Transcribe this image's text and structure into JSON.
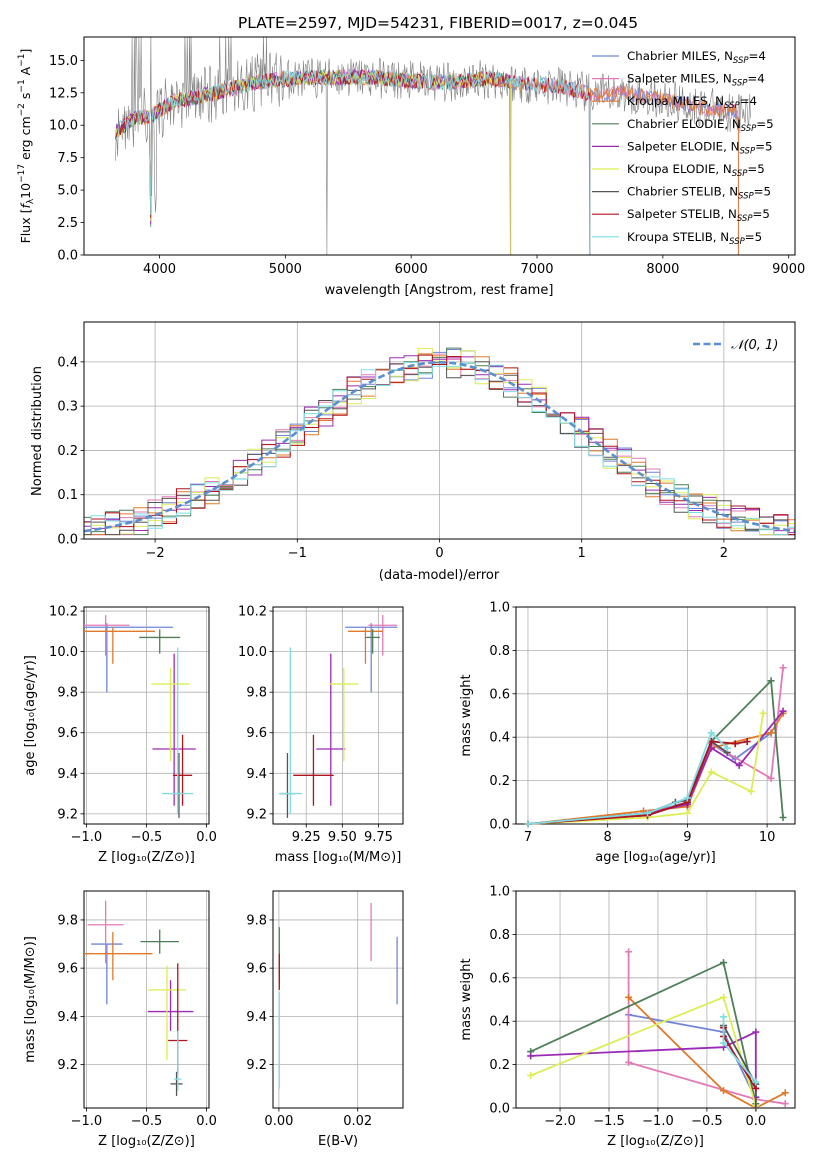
{
  "colors": {
    "Chabrier MILES": "#6f86d6",
    "Salpeter MILES": "#e37ab7",
    "Kroupa MILES": "#e07a2a",
    "Chabrier ELODIE": "#4e7f57",
    "Salpeter ELODIE": "#9b2bb5",
    "Kroupa ELODIE": "#dced56",
    "Chabrier STELIB": "#555555",
    "Salpeter STELIB": "#b1121f",
    "Kroupa STELIB": "#7fdde2",
    "normal": "#5b8fd0"
  },
  "chart_data": [
    {
      "id": "spectrum",
      "type": "line",
      "title": "PLATE=2597, MJD=54231, FIBERID=0017, z=0.045",
      "xlabel": "wavelength [Angstrom, rest frame]",
      "ylabel": "Flux [fλ10⁻¹⁷ erg cm⁻² s⁻¹ A⁻¹]",
      "xlim": [
        3400,
        9050
      ],
      "ylim": [
        0,
        16.8
      ],
      "xticks": [
        4000,
        5000,
        6000,
        7000,
        8000,
        9000
      ],
      "yticks": [
        0.0,
        2.5,
        5.0,
        7.5,
        10.0,
        12.5,
        15.0
      ],
      "legend": [
        {
          "name": "Chabrier MILES",
          "n": "4"
        },
        {
          "name": "Salpeter MILES",
          "n": "4"
        },
        {
          "name": "Kroupa MILES",
          "n": "4"
        },
        {
          "name": "Chabrier ELODIE",
          "n": "5"
        },
        {
          "name": "Salpeter ELODIE",
          "n": "5"
        },
        {
          "name": "Kroupa ELODIE",
          "n": "5"
        },
        {
          "name": "Chabrier STELIB",
          "n": "5"
        },
        {
          "name": "Salpeter STELIB",
          "n": "5"
        },
        {
          "name": "Kroupa STELIB",
          "n": "5"
        }
      ],
      "legend_position": "right",
      "continuum": [
        [
          3650,
          9.5
        ],
        [
          3800,
          10.5
        ],
        [
          3950,
          10.8
        ],
        [
          4100,
          11.8
        ],
        [
          4300,
          12.2
        ],
        [
          4500,
          12.6
        ],
        [
          4700,
          13.2
        ],
        [
          4900,
          13.5
        ],
        [
          5100,
          13.6
        ],
        [
          5400,
          13.7
        ],
        [
          5700,
          13.7
        ],
        [
          6000,
          13.4
        ],
        [
          6300,
          13.3
        ],
        [
          6600,
          13.6
        ],
        [
          6900,
          13.2
        ],
        [
          7200,
          13.0
        ],
        [
          7450,
          12.3
        ],
        [
          7700,
          12.5
        ],
        [
          8000,
          12.0
        ],
        [
          8300,
          11.4
        ],
        [
          8600,
          11.0
        ],
        [
          8700,
          10.8
        ]
      ]
    },
    {
      "id": "residual-histogram",
      "type": "line",
      "xlabel": "(data-model)/error",
      "ylabel": "Normed distribution",
      "xlim": [
        -2.5,
        2.5
      ],
      "ylim": [
        0,
        0.49
      ],
      "xticks": [
        -2,
        -1,
        0,
        1,
        2
      ],
      "yticks": [
        0.0,
        0.1,
        0.2,
        0.3,
        0.4
      ],
      "legend": "𝒩(0, 1)",
      "bin_width": 0.1
    },
    {
      "id": "age-vs-Z",
      "type": "scatter",
      "xlabel": "Z [log₁₀(Z/Z⊙)]",
      "ylabel": "age  [log₁₀(age/yr)]",
      "xlim": [
        -1.02,
        0.02
      ],
      "ylim": [
        9.15,
        10.22
      ],
      "xticks": [
        -1.0,
        -0.5,
        0.0
      ],
      "xticklabels": [
        "−1.0",
        "−0.5",
        "0.0"
      ],
      "yticks": [
        9.2,
        9.4,
        9.6,
        9.8,
        10.0,
        10.2
      ],
      "points": [
        {
          "model": "Chabrier MILES",
          "x": -0.83,
          "y": 10.12,
          "xerr": 0.55,
          "yerr_lo": 0.32,
          "yerr_hi": 0.02
        },
        {
          "model": "Salpeter MILES",
          "x": -0.84,
          "y": 10.13,
          "xerr": 0.2,
          "yerr_lo": 0.15,
          "yerr_hi": 0.05
        },
        {
          "model": "Kroupa MILES",
          "x": -0.78,
          "y": 10.1,
          "xerr": 0.35,
          "yerr_lo": 0.16,
          "yerr_hi": 0.02
        },
        {
          "model": "Chabrier ELODIE",
          "x": -0.39,
          "y": 10.07,
          "xerr": 0.17,
          "yerr_lo": 0.08,
          "yerr_hi": 0.04
        },
        {
          "model": "Salpeter ELODIE",
          "x": -0.27,
          "y": 9.52,
          "xerr": 0.18,
          "yerr_lo": 0.28,
          "yerr_hi": 0.47
        },
        {
          "model": "Kroupa ELODIE",
          "x": -0.3,
          "y": 9.84,
          "xerr": 0.16,
          "yerr_lo": 0.38,
          "yerr_hi": 0.08
        },
        {
          "model": "Chabrier STELIB",
          "x": -0.23,
          "y": 9.3,
          "xerr": 0.05,
          "yerr_lo": 0.12,
          "yerr_hi": 0.2
        },
        {
          "model": "Salpeter STELIB",
          "x": -0.2,
          "y": 9.39,
          "xerr": 0.08,
          "yerr_lo": 0.15,
          "yerr_hi": 0.2
        },
        {
          "model": "Kroupa STELIB",
          "x": -0.24,
          "y": 9.3,
          "xerr": 0.13,
          "yerr_lo": 0.1,
          "yerr_hi": 0.72
        }
      ]
    },
    {
      "id": "age-vs-mass",
      "type": "scatter",
      "xlabel": "mass [log₁₀(M/M⊙)]",
      "ylabel": "",
      "xlim": [
        9.02,
        9.92
      ],
      "ylim": [
        9.15,
        10.22
      ],
      "xticks": [
        9.25,
        9.5,
        9.75
      ],
      "xticklabels": [
        "9.25",
        "9.50",
        "9.75"
      ],
      "yticks": [
        9.2,
        9.4,
        9.6,
        9.8,
        10.0,
        10.2
      ],
      "points": [
        {
          "model": "Chabrier MILES",
          "x": 9.7,
          "y": 10.12,
          "xerr": 0.18,
          "yerr_lo": 0.32,
          "yerr_hi": 0.02
        },
        {
          "model": "Salpeter MILES",
          "x": 9.78,
          "y": 10.13,
          "xerr": 0.1,
          "yerr_lo": 0.15,
          "yerr_hi": 0.05
        },
        {
          "model": "Kroupa MILES",
          "x": 9.66,
          "y": 10.1,
          "xerr": 0.12,
          "yerr_lo": 0.16,
          "yerr_hi": 0.02
        },
        {
          "model": "Chabrier ELODIE",
          "x": 9.71,
          "y": 10.07,
          "xerr": 0.05,
          "yerr_lo": 0.08,
          "yerr_hi": 0.04
        },
        {
          "model": "Salpeter ELODIE",
          "x": 9.42,
          "y": 9.52,
          "xerr": 0.1,
          "yerr_lo": 0.28,
          "yerr_hi": 0.47
        },
        {
          "model": "Kroupa ELODIE",
          "x": 9.51,
          "y": 9.84,
          "xerr": 0.1,
          "yerr_lo": 0.38,
          "yerr_hi": 0.08
        },
        {
          "model": "Chabrier STELIB",
          "x": 9.12,
          "y": 9.3,
          "xerr": 0.05,
          "yerr_lo": 0.12,
          "yerr_hi": 0.2
        },
        {
          "model": "Salpeter STELIB",
          "x": 9.3,
          "y": 9.39,
          "xerr": 0.14,
          "yerr_lo": 0.15,
          "yerr_hi": 0.2
        },
        {
          "model": "Kroupa STELIB",
          "x": 9.14,
          "y": 9.3,
          "xerr": 0.08,
          "yerr_lo": 0.1,
          "yerr_hi": 0.72
        }
      ]
    },
    {
      "id": "mass-weight-vs-age",
      "type": "line",
      "xlabel": "age  [log₁₀(age/yr)]",
      "ylabel": "mass weight",
      "xlim": [
        6.85,
        10.35
      ],
      "ylim": [
        0,
        1.0
      ],
      "xticks": [
        7,
        8,
        9,
        10
      ],
      "yticks": [
        0.0,
        0.2,
        0.4,
        0.6,
        0.8,
        1.0
      ],
      "series": [
        {
          "model": "Chabrier MILES",
          "x": [
            7.0,
            8.5,
            9.0,
            9.3,
            9.6,
            10.05
          ],
          "y": [
            0.0,
            0.05,
            0.1,
            0.37,
            0.3,
            0.42
          ]
        },
        {
          "model": "Salpeter MILES",
          "x": [
            7.0,
            8.5,
            9.0,
            9.3,
            10.05,
            10.2
          ],
          "y": [
            0.0,
            0.05,
            0.09,
            0.37,
            0.21,
            0.72
          ]
        },
        {
          "model": "Kroupa MILES",
          "x": [
            7.0,
            8.45,
            9.0,
            9.3,
            10.05,
            10.2
          ],
          "y": [
            0.0,
            0.06,
            0.08,
            0.35,
            0.42,
            0.51
          ]
        },
        {
          "model": "Chabrier ELODIE",
          "x": [
            7.0,
            8.5,
            9.0,
            9.3,
            10.05,
            10.2
          ],
          "y": [
            0.0,
            0.04,
            0.1,
            0.38,
            0.66,
            0.03
          ]
        },
        {
          "model": "Salpeter ELODIE",
          "x": [
            7.0,
            8.5,
            9.0,
            9.3,
            9.65,
            10.2
          ],
          "y": [
            0.0,
            0.05,
            0.09,
            0.35,
            0.27,
            0.52
          ]
        },
        {
          "model": "Kroupa ELODIE",
          "x": [
            7.0,
            8.5,
            9.0,
            9.3,
            9.8,
            9.95
          ],
          "y": [
            0.0,
            0.03,
            0.05,
            0.24,
            0.15,
            0.51
          ]
        },
        {
          "model": "Chabrier STELIB",
          "x": [
            7.0,
            8.5,
            8.85,
            9.0,
            9.3,
            9.5
          ],
          "y": [
            0.0,
            0.05,
            0.1,
            0.11,
            0.38,
            0.33
          ]
        },
        {
          "model": "Salpeter STELIB",
          "x": [
            7.0,
            8.5,
            9.0,
            9.3,
            9.6,
            9.75
          ],
          "y": [
            0.0,
            0.04,
            0.1,
            0.38,
            0.37,
            0.38
          ]
        },
        {
          "model": "Kroupa STELIB",
          "x": [
            7.0,
            8.5,
            9.0,
            9.3,
            9.5
          ],
          "y": [
            0.0,
            0.05,
            0.12,
            0.42,
            0.35
          ]
        }
      ]
    },
    {
      "id": "mass-vs-Z",
      "type": "scatter",
      "xlabel": "Z [log₁₀(Z/Z⊙)]",
      "ylabel": "mass [log₁₀(M/M⊙)]",
      "xlim": [
        -1.02,
        0.02
      ],
      "ylim": [
        9.02,
        9.92
      ],
      "xticks": [
        -1.0,
        -0.5,
        0.0
      ],
      "xticklabels": [
        "−1.0",
        "−0.5",
        "0.0"
      ],
      "yticks": [
        9.2,
        9.4,
        9.6,
        9.8
      ],
      "points": [
        {
          "model": "Chabrier MILES",
          "x": -0.83,
          "y": 9.7,
          "xerr": 0.13,
          "yerr_lo": 0.25,
          "yerr_hi": 0.0
        },
        {
          "model": "Salpeter MILES",
          "x": -0.84,
          "y": 9.78,
          "xerr": 0.15,
          "yerr_lo": 0.16,
          "yerr_hi": 0.1
        },
        {
          "model": "Kroupa MILES",
          "x": -0.78,
          "y": 9.66,
          "xerr": 0.33,
          "yerr_lo": 0.11,
          "yerr_hi": 0.09
        },
        {
          "model": "Chabrier ELODIE",
          "x": -0.39,
          "y": 9.71,
          "xerr": 0.16,
          "yerr_lo": 0.05,
          "yerr_hi": 0.05
        },
        {
          "model": "Salpeter ELODIE",
          "x": -0.3,
          "y": 9.42,
          "xerr": 0.19,
          "yerr_lo": 0.08,
          "yerr_hi": 0.13
        },
        {
          "model": "Kroupa ELODIE",
          "x": -0.33,
          "y": 9.51,
          "xerr": 0.16,
          "yerr_lo": 0.29,
          "yerr_hi": 0.1
        },
        {
          "model": "Chabrier STELIB",
          "x": -0.25,
          "y": 9.12,
          "xerr": 0.05,
          "yerr_lo": 0.05,
          "yerr_hi": 0.05
        },
        {
          "model": "Salpeter STELIB",
          "x": -0.24,
          "y": 9.3,
          "xerr": 0.08,
          "yerr_lo": 0.14,
          "yerr_hi": 0.32
        },
        {
          "model": "Kroupa STELIB",
          "x": -0.24,
          "y": 9.14,
          "xerr": 0.03,
          "yerr_lo": 0.05,
          "yerr_hi": 0.2
        }
      ]
    },
    {
      "id": "mass-vs-ebv",
      "type": "scatter",
      "xlabel": "E(B-V)",
      "ylabel": "",
      "xlim": [
        -0.0015,
        0.0315
      ],
      "ylim": [
        9.02,
        9.92
      ],
      "xticks": [
        0.0,
        0.02
      ],
      "xticklabels": [
        "0.00",
        "0.02"
      ],
      "yticks": [
        9.2,
        9.4,
        9.6,
        9.8
      ],
      "points": [
        {
          "model": "Chabrier MILES",
          "x": 0.03,
          "y": 9.59,
          "xerr": 0,
          "yerr_lo": 0.14,
          "yerr_hi": 0.14
        },
        {
          "model": "Salpeter MILES",
          "x": 0.0234,
          "y": 9.75,
          "xerr": 0,
          "yerr_lo": 0.12,
          "yerr_hi": 0.12
        },
        {
          "model": "Chabrier ELODIE",
          "x": 0.0001,
          "y": 9.64,
          "xerr": 0,
          "yerr_lo": 0.1,
          "yerr_hi": 0.13
        },
        {
          "model": "Salpeter STELIB",
          "x": 0.0001,
          "y": 9.58,
          "xerr": 0,
          "yerr_lo": 0.07,
          "yerr_hi": 0.08
        },
        {
          "model": "Kroupa STELIB",
          "x": 0.0001,
          "y": 9.3,
          "xerr": 0,
          "yerr_lo": 0.2,
          "yerr_hi": 0.2
        }
      ]
    },
    {
      "id": "mass-weight-vs-Z",
      "type": "line",
      "xlabel": "Z [log₁₀(Z/Z⊙)]",
      "ylabel": "mass weight",
      "xlim": [
        -2.45,
        0.4
      ],
      "ylim": [
        0,
        1.0
      ],
      "xticks": [
        -2.0,
        -1.5,
        -1.0,
        -0.5,
        0.0
      ],
      "xticklabels": [
        "−2.0",
        "−1.5",
        "−1.0",
        "−0.5",
        "0.0"
      ],
      "yticks": [
        0.0,
        0.2,
        0.4,
        0.6,
        0.8,
        1.0
      ],
      "series": [
        {
          "model": "Chabrier MILES",
          "x": [
            -1.3,
            -0.33,
            0.0
          ],
          "y": [
            0.43,
            0.35,
            0.04
          ]
        },
        {
          "model": "Salpeter MILES",
          "x": [
            -1.3,
            -1.3,
            0.0,
            0.3
          ],
          "y": [
            0.72,
            0.21,
            0.04,
            0.02
          ]
        },
        {
          "model": "Kroupa MILES",
          "x": [
            -1.3,
            -0.33,
            0.0,
            0.3
          ],
          "y": [
            0.51,
            0.08,
            0.0,
            0.07
          ]
        },
        {
          "model": "Chabrier ELODIE",
          "x": [
            -2.3,
            -0.33,
            0.0
          ],
          "y": [
            0.26,
            0.67,
            0.02
          ]
        },
        {
          "model": "Salpeter ELODIE",
          "x": [
            -2.3,
            -0.33,
            0.0,
            0.0
          ],
          "y": [
            0.24,
            0.28,
            0.35,
            0.05
          ]
        },
        {
          "model": "Kroupa ELODIE",
          "x": [
            -2.3,
            -0.33,
            0.0
          ],
          "y": [
            0.15,
            0.51,
            0.01
          ]
        },
        {
          "model": "Chabrier STELIB",
          "x": [
            -0.33,
            0.0,
            0.0
          ],
          "y": [
            0.38,
            0.11,
            0.0
          ]
        },
        {
          "model": "Salpeter STELIB",
          "x": [
            -0.33,
            -0.33,
            0.0
          ],
          "y": [
            0.37,
            0.33,
            0.09
          ]
        },
        {
          "model": "Kroupa STELIB",
          "x": [
            -0.33,
            -0.33,
            0.0
          ],
          "y": [
            0.42,
            0.3,
            0.12
          ]
        }
      ]
    }
  ]
}
